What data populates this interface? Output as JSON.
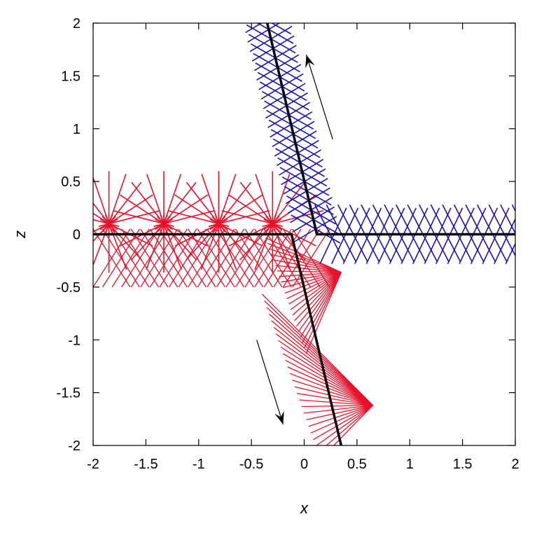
{
  "chart_data": {
    "type": "line",
    "xlabel": "x",
    "ylabel": "z",
    "xlim": [
      -2,
      2
    ],
    "ylim": [
      -2,
      2
    ],
    "xticks": [
      -2,
      -1.5,
      -1,
      -0.5,
      0,
      0.5,
      1,
      1.5,
      2
    ],
    "yticks": [
      -2,
      -1.5,
      -1,
      -0.5,
      0,
      0.5,
      1,
      1.5,
      2
    ],
    "xtick_labels": [
      "-2",
      "-1.5",
      "-1",
      "-0.5",
      "0",
      "0.5",
      "1",
      "1.5",
      "2"
    ],
    "ytick_labels": [
      "-2",
      "-1.5",
      "-1",
      "-0.5",
      "0",
      "0.5",
      "1",
      "1.5",
      "2"
    ],
    "grid": false,
    "colors": {
      "red_family": "#e8102a",
      "blue_family": "#1a12b0",
      "path": "#000000",
      "arrow": "#000000"
    },
    "series": [
      {
        "color": "red",
        "type": "line",
        "x": [
          -2,
          -0.12,
          0.35
        ],
        "y": [
          0,
          0,
          -2
        ]
      },
      {
        "color": "blue",
        "type": "line",
        "x": [
          -0.35,
          0.12,
          2
        ],
        "y": [
          2,
          0,
          0
        ]
      }
    ],
    "arrows": [
      {
        "x1": 0.27,
        "y1": 0.9,
        "x2": 0.02,
        "y2": 1.7
      },
      {
        "x1": -0.45,
        "y1": -1.0,
        "x2": -0.2,
        "y2": -1.8
      }
    ]
  }
}
